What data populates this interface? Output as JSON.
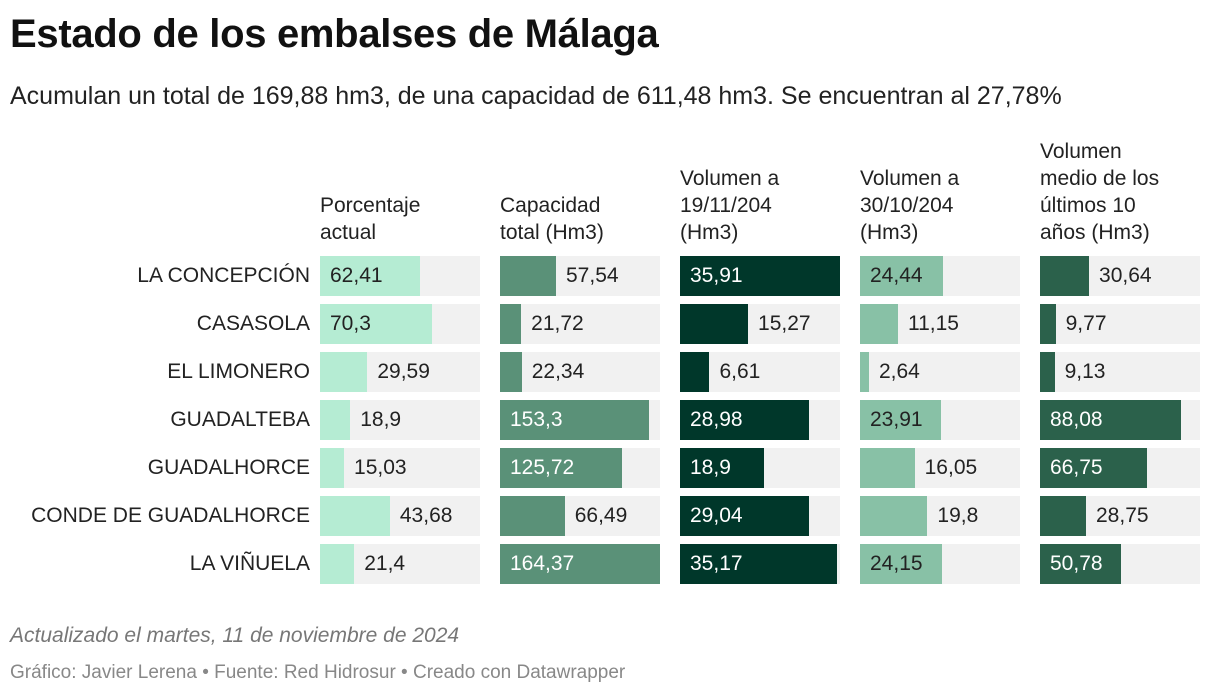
{
  "chart_data": {
    "type": "table",
    "title": "Estado de los embalses de Málaga",
    "subtitle": "Acumulan un total de 169,88 hm3, de una capacidad de 611,48 hm3. Se encuentran al 27,78%",
    "columns": [
      {
        "name": "Porcentaje\nactual",
        "color": "#b5ecd3",
        "text_color_inside": "#222222",
        "max": 100
      },
      {
        "name": "Capacidad\ntotal (Hm3)",
        "color": "#5a9178",
        "text_color_inside": "#ffffff",
        "max": 164.37
      },
      {
        "name": "Volumen a\n19/11/204\n(Hm3)",
        "color": "#00372a",
        "text_color_inside": "#ffffff",
        "max": 35.91
      },
      {
        "name": "Volumen a\n30/10/204\n(Hm3)",
        "color": "#88c1a6",
        "text_color_inside": "#222222",
        "max": 47
      },
      {
        "name": "Volumen\nmedio de los\núltimos 10\naños (Hm3)",
        "color": "#2b614b",
        "text_color_inside": "#ffffff",
        "max": 100
      }
    ],
    "rows": [
      {
        "label": "LA CONCEPCIÓN",
        "values": [
          62.41,
          57.54,
          35.91,
          24.44,
          30.64
        ],
        "display": [
          "62,41",
          "57,54",
          "35,91",
          "24,44",
          "30,64"
        ]
      },
      {
        "label": "CASASOLA",
        "values": [
          70.3,
          21.72,
          15.27,
          11.15,
          9.77
        ],
        "display": [
          "70,3",
          "21,72",
          "15,27",
          "11,15",
          "9,77"
        ]
      },
      {
        "label": "EL LIMONERO",
        "values": [
          29.59,
          22.34,
          6.61,
          2.64,
          9.13
        ],
        "display": [
          "29,59",
          "22,34",
          "6,61",
          "2,64",
          "9,13"
        ]
      },
      {
        "label": "GUADALTEBA",
        "values": [
          18.9,
          153.3,
          28.98,
          23.91,
          88.08
        ],
        "display": [
          "18,9",
          "153,3",
          "28,98",
          "23,91",
          "88,08"
        ]
      },
      {
        "label": "GUADALHORCE",
        "values": [
          15.03,
          125.72,
          18.9,
          16.05,
          66.75
        ],
        "display": [
          "15,03",
          "125,72",
          "18,9",
          "16,05",
          "66,75"
        ]
      },
      {
        "label": "CONDE DE GUADALHORCE",
        "values": [
          43.68,
          66.49,
          29.04,
          19.8,
          28.75
        ],
        "display": [
          "43,68",
          "66,49",
          "29,04",
          "19,8",
          "28,75"
        ]
      },
      {
        "label": "LA VIÑUELA",
        "values": [
          21.4,
          164.37,
          35.17,
          24.15,
          50.78
        ],
        "display": [
          "21,4",
          "164,37",
          "35,17",
          "24,15",
          "50,78"
        ]
      }
    ],
    "cell_background": "#f1f1f1"
  },
  "footer": {
    "note": "Actualizado el martes, 11 de noviembre de 2024",
    "source": "Gráfico: Javier Lerena • Fuente: Red Hidrosur • Creado con Datawrapper"
  }
}
